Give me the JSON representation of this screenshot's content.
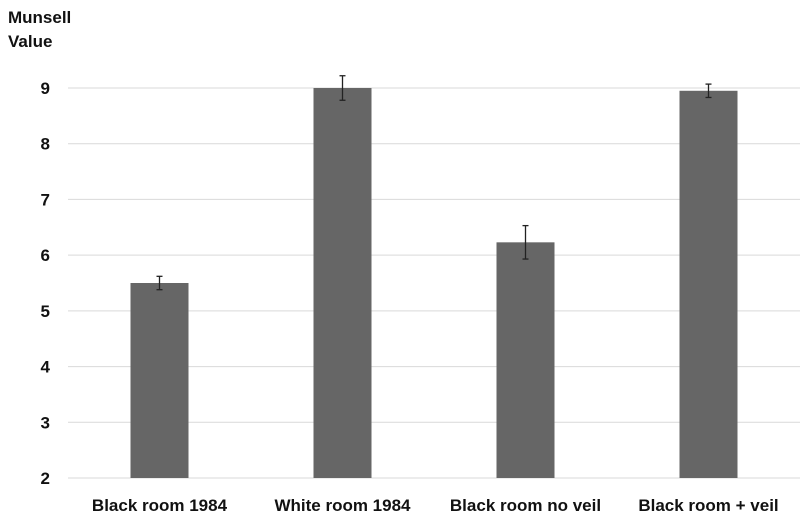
{
  "chart_data": {
    "type": "bar",
    "title": "",
    "xlabel": "",
    "ylabel": "Munsell\nValue",
    "ylim": [
      2,
      9
    ],
    "yticks": [
      2,
      3,
      4,
      5,
      6,
      7,
      8,
      9
    ],
    "grid": true,
    "legend": "none",
    "categories": [
      "Black room 1984",
      "White room 1984",
      "Black room no veil",
      "Black room + veil"
    ],
    "values": [
      5.5,
      9.0,
      6.23,
      8.95
    ],
    "error": [
      0.12,
      0.22,
      0.3,
      0.12
    ],
    "colors": {
      "bar": "#666666",
      "grid": "#d9d9d9",
      "error": "#222222"
    }
  }
}
